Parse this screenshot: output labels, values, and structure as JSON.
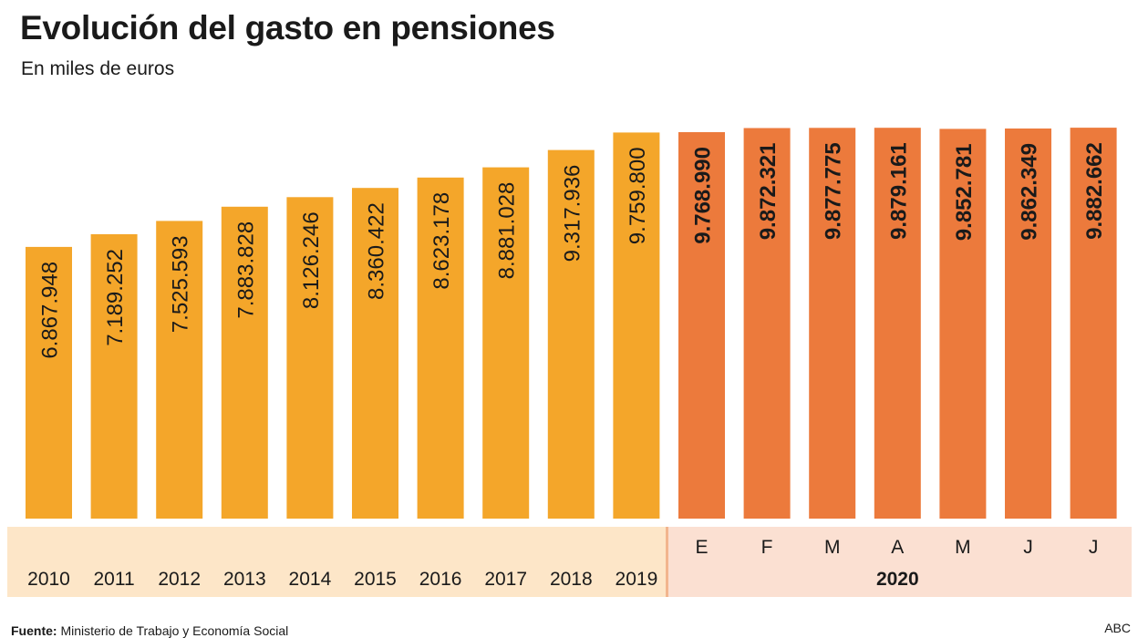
{
  "title": "Evolución del gasto en pensiones",
  "subtitle": "En miles de euros",
  "source_label": "Fuente:",
  "source_text": "Ministerio de Trabajo y Economía Social",
  "credit": "ABC",
  "colors": {
    "annual_bar": "#f4a62a",
    "monthly_bar": "#ec7a3c",
    "annual_band": "#fde6c8",
    "monthly_band": "#fbe0d2",
    "divider": "#f2b58e",
    "text": "#1a1a1a"
  },
  "chart_data": {
    "type": "bar",
    "title": "Evolución del gasto en pensiones",
    "subtitle": "En miles de euros",
    "categories": [
      "2010",
      "2011",
      "2012",
      "2013",
      "2014",
      "2015",
      "2016",
      "2017",
      "2018",
      "2019",
      "E",
      "F",
      "M",
      "A",
      "M",
      "J",
      "J"
    ],
    "values": [
      6867948,
      7189252,
      7525593,
      7883828,
      8126246,
      8360422,
      8623178,
      8881028,
      9317936,
      9759800,
      9768990,
      9872321,
      9877775,
      9879161,
      9852781,
      9862349,
      9882662
    ],
    "value_labels": [
      "6.867.948",
      "7.189.252",
      "7.525.593",
      "7.883.828",
      "8.126.246",
      "8.360.422",
      "8.623.178",
      "8.881.028",
      "9.317.936",
      "9.759.800",
      "9.768.990",
      "9.872.321",
      "9.877.775",
      "9.879.161",
      "9.852.781",
      "9.862.349",
      "9.882.662"
    ],
    "group_label": "2020",
    "monthly_start_index": 10,
    "ylim": [
      0,
      10000000
    ],
    "grid": false,
    "legend": "none"
  }
}
